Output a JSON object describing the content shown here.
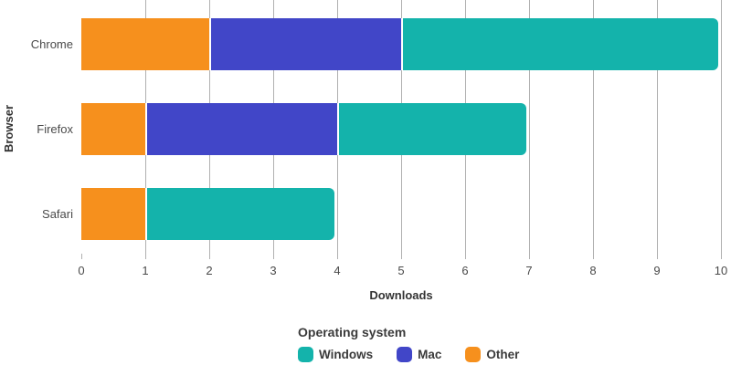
{
  "chart_data": {
    "type": "bar",
    "orientation": "horizontal",
    "stacked": true,
    "title": "",
    "xlabel": "Downloads",
    "ylabel": "Browser",
    "legend_title": "Operating system",
    "legend_position": "bottom",
    "grid": true,
    "xlim": [
      0,
      10
    ],
    "x_ticks": [
      "0",
      "1",
      "2",
      "3",
      "4",
      "5",
      "6",
      "7",
      "8",
      "9",
      "10"
    ],
    "categories": [
      "Chrome",
      "Firefox",
      "Safari"
    ],
    "series": [
      {
        "name": "Windows",
        "color": "#14B3AB",
        "values": [
          5,
          3,
          3
        ]
      },
      {
        "name": "Mac",
        "color": "#4146C8",
        "values": [
          3,
          3,
          0
        ]
      },
      {
        "name": "Other",
        "color": "#F6901D",
        "values": [
          2,
          1,
          1
        ]
      }
    ],
    "stack_order": [
      "Other",
      "Mac",
      "Windows"
    ],
    "totals": [
      10,
      7,
      4
    ]
  },
  "colors": {
    "background": "#ffffff",
    "gridline": "#b0b0b0",
    "segment_separator": "#ffffff",
    "tick_label_text": "#4a4a4a",
    "category_label_text": "#4a4a4a",
    "axis_title_text": "#333333",
    "legend_text": "#3a3a3a"
  }
}
